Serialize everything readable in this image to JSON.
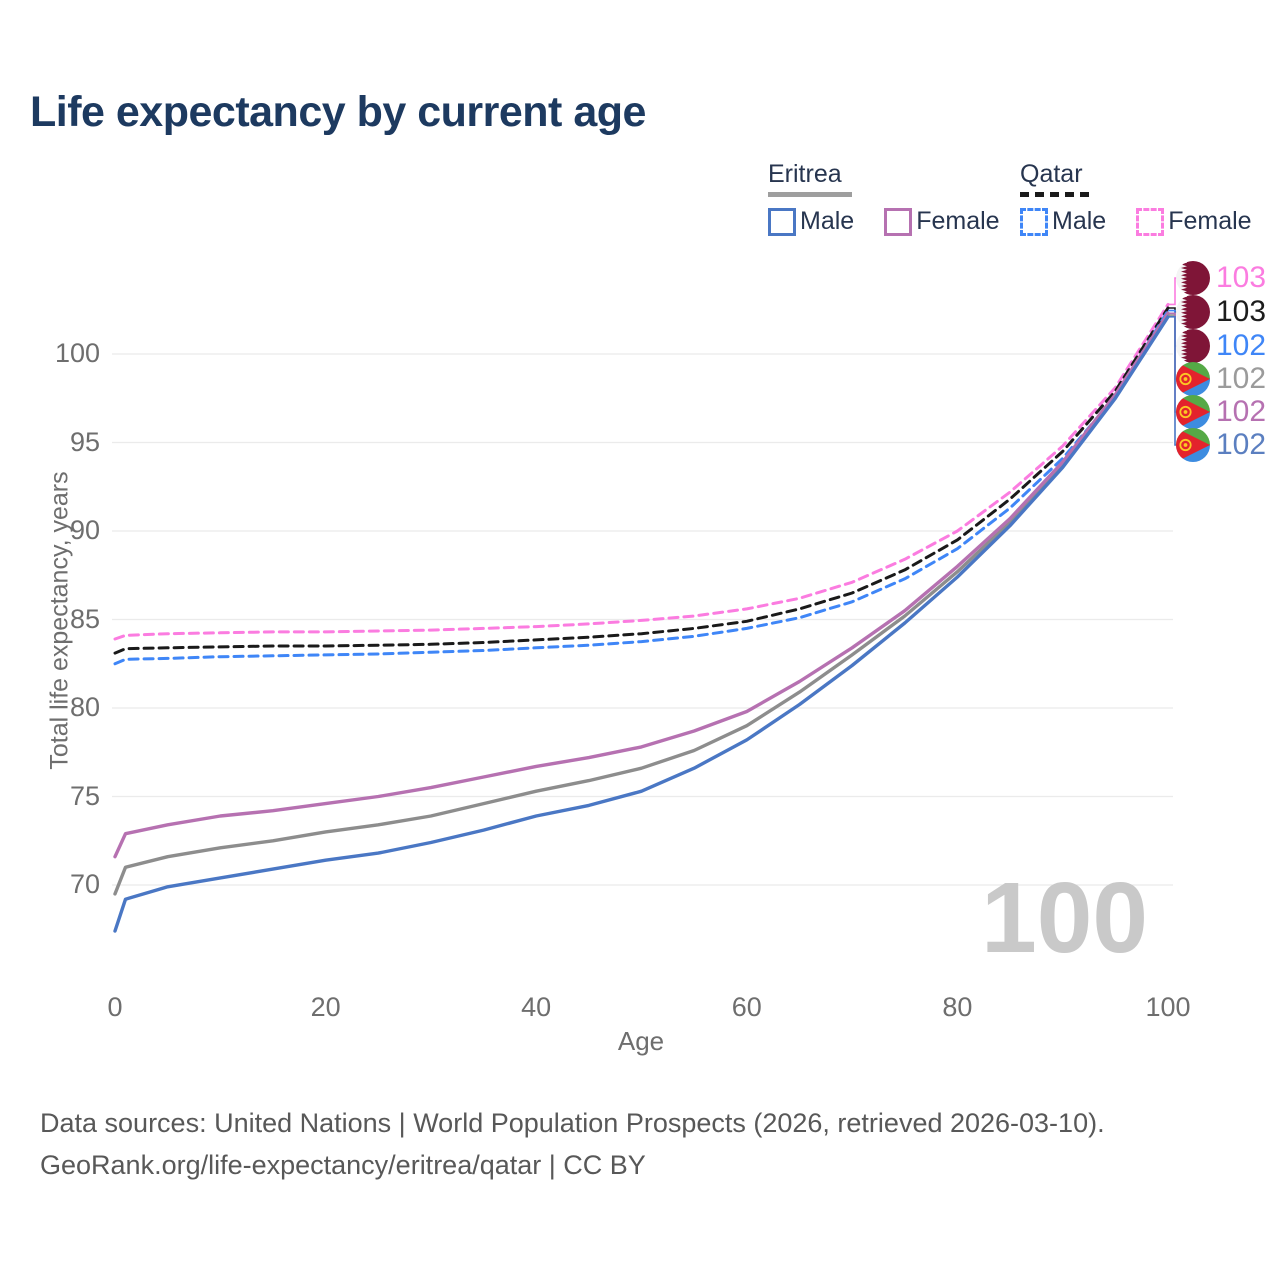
{
  "title": "Life expectancy by current age",
  "legend": {
    "groups": [
      {
        "country": "Eritrea",
        "line_style": "solid",
        "rule_color": "#9e9e9e",
        "male_label": "Male",
        "female_label": "Female",
        "male_color": "#4a77c4",
        "female_color": "#b671b1"
      },
      {
        "country": "Qatar",
        "line_style": "dashed",
        "rule_color": "#1a1a1a",
        "male_label": "Male",
        "female_label": "Female",
        "male_color": "#3f86f7",
        "female_color": "#fb7ce0"
      }
    ]
  },
  "chart_data": {
    "type": "line",
    "title": "Life expectancy by current age",
    "xlabel": "Age",
    "ylabel": "Total life expectancy, years",
    "xlim": [
      0,
      100
    ],
    "ylim": [
      67,
      103
    ],
    "xticks": [
      "0",
      "20",
      "40",
      "60",
      "80",
      "100"
    ],
    "yticks": [
      "70",
      "75",
      "80",
      "85",
      "90",
      "95",
      "100"
    ],
    "grid": "horizontal",
    "legend_position": "top-right",
    "x": [
      0,
      1,
      5,
      10,
      15,
      20,
      25,
      30,
      35,
      40,
      45,
      50,
      55,
      60,
      65,
      70,
      75,
      80,
      85,
      90,
      95,
      100
    ],
    "series": [
      {
        "name": "Qatar Female",
        "country": "Qatar",
        "sex": "Female",
        "color": "#fb7ce0",
        "dash": true,
        "values": [
          83.9,
          84.1,
          84.2,
          84.25,
          84.3,
          84.3,
          84.35,
          84.4,
          84.5,
          84.6,
          84.75,
          84.95,
          85.2,
          85.6,
          86.2,
          87.1,
          88.4,
          90.0,
          92.2,
          94.8,
          98.1,
          102.8
        ]
      },
      {
        "name": "Qatar",
        "country": "Qatar",
        "sex": "Both",
        "color": "#1a1a1a",
        "dash": true,
        "values": [
          83.1,
          83.35,
          83.4,
          83.45,
          83.5,
          83.5,
          83.55,
          83.6,
          83.7,
          83.85,
          84.0,
          84.2,
          84.5,
          84.9,
          85.6,
          86.5,
          87.8,
          89.5,
          91.8,
          94.5,
          97.9,
          102.6
        ]
      },
      {
        "name": "Qatar Male",
        "country": "Qatar",
        "sex": "Male",
        "color": "#3f86f7",
        "dash": true,
        "values": [
          82.5,
          82.75,
          82.8,
          82.9,
          82.95,
          83.0,
          83.05,
          83.15,
          83.25,
          83.4,
          83.55,
          83.75,
          84.05,
          84.5,
          85.1,
          86.0,
          87.3,
          89.0,
          91.3,
          94.1,
          97.6,
          102.45
        ]
      },
      {
        "name": "Eritrea",
        "country": "Eritrea",
        "sex": "Both",
        "color": "#8d8d8d",
        "dash": false,
        "values": [
          69.5,
          71.0,
          71.6,
          72.1,
          72.5,
          73.0,
          73.4,
          73.9,
          74.6,
          75.3,
          75.9,
          76.6,
          77.6,
          79.0,
          80.9,
          83.0,
          85.2,
          87.7,
          90.5,
          93.7,
          97.6,
          102.2
        ]
      },
      {
        "name": "Eritrea Female",
        "country": "Eritrea",
        "sex": "Female",
        "color": "#b671b1",
        "dash": false,
        "values": [
          71.6,
          72.9,
          73.4,
          73.9,
          74.2,
          74.6,
          75.0,
          75.5,
          76.1,
          76.7,
          77.2,
          77.8,
          78.7,
          79.8,
          81.5,
          83.4,
          85.5,
          88.0,
          90.7,
          93.9,
          97.7,
          102.3
        ]
      },
      {
        "name": "Eritrea Male",
        "country": "Eritrea",
        "sex": "Male",
        "color": "#4a77c4",
        "dash": false,
        "values": [
          67.4,
          69.2,
          69.9,
          70.4,
          70.9,
          71.4,
          71.8,
          72.4,
          73.1,
          73.9,
          74.5,
          75.3,
          76.6,
          78.2,
          80.2,
          82.4,
          84.8,
          87.4,
          90.3,
          93.6,
          97.5,
          102.1
        ]
      }
    ],
    "end_labels": [
      {
        "value": "103",
        "series": "Qatar Female",
        "color": "#fb7ce0",
        "flag": "qatar"
      },
      {
        "value": "103",
        "series": "Qatar",
        "color": "#1c1c1c",
        "flag": "qatar"
      },
      {
        "value": "102",
        "series": "Qatar Male",
        "color": "#3f86f7",
        "flag": "qatar"
      },
      {
        "value": "102",
        "series": "Eritrea",
        "color": "#9b9b9b",
        "flag": "eritrea"
      },
      {
        "value": "102",
        "series": "Eritrea Female",
        "color": "#b671b1",
        "flag": "eritrea"
      },
      {
        "value": "102",
        "series": "Eritrea Male",
        "color": "#5b7fc0",
        "flag": "eritrea"
      }
    ],
    "watermark": "100",
    "grid_color": "#ebebeb"
  },
  "footer": {
    "line1": "Data sources: United Nations | World Population Prospects (2026, retrieved 2026-03-10).",
    "line2": "GeoRank.org/life-expectancy/eritrea/qatar | CC BY"
  }
}
